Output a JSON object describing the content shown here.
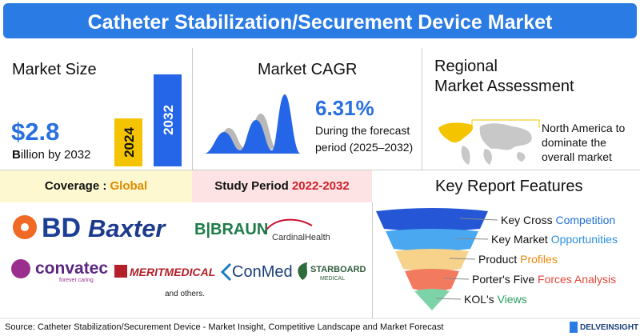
{
  "header": {
    "title": "Catheter Stabilization/Securement Device Market"
  },
  "market_size": {
    "heading": "Market Size",
    "value": "$2.8",
    "subtitle": "Billion by 2032",
    "bars": [
      "2024",
      "2032"
    ]
  },
  "market_cagr": {
    "heading": "Market CAGR",
    "value": "6.31%",
    "lines": [
      "During the forecast",
      "period (2025–2032)"
    ]
  },
  "regional": {
    "heading": [
      "Regional",
      "Market Assessment"
    ],
    "lines": [
      "North America to",
      "dominate the",
      "overall market"
    ]
  },
  "coverage": {
    "label": "Coverage :",
    "value": "Global"
  },
  "study_period": {
    "label": "Study Period",
    "value": "2022-2032"
  },
  "features": {
    "heading": "Key Report Features",
    "items": [
      {
        "text": "Key Cross",
        "highlight": "Competition"
      },
      {
        "text": "Key Market",
        "highlight": "Opportunities"
      },
      {
        "text": "Product",
        "highlight": "Profiles"
      },
      {
        "text": "Porter's Five",
        "highlight": "Forces Analysis"
      },
      {
        "text": "KOL's",
        "highlight": "Views"
      }
    ]
  },
  "logos": [
    "BD",
    "Baxter",
    "B|BRAUN",
    "CardinalHealth",
    "convatec",
    "forever caring",
    "MERITMEDICAL",
    "ConMed",
    "STARBOARD",
    "MEDICAL"
  ],
  "others": "and others.",
  "footer": {
    "source": "Source: Catheter Stabilization/Securement Device - Market Insight, Competitive Landscape and Market Forecast",
    "brand": "DELVEINSIGHT"
  }
}
